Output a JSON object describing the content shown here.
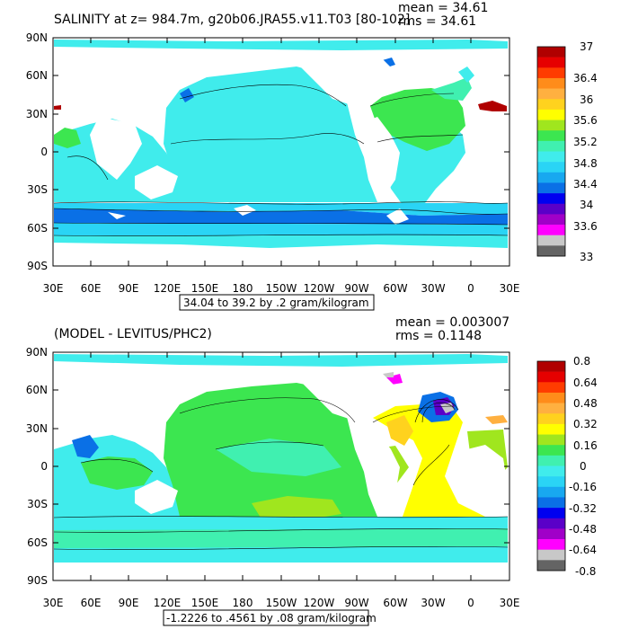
{
  "panels": [
    {
      "title": "SALINITY at z= 984.7m, g20b06.JRA55.v11.T03 [80-102]",
      "mean_label": "mean = 34.61",
      "rms_label": "rms = 34.61",
      "range_label": "34.04 to 39.2 by .2 gram/kilogram"
    },
    {
      "title": "(MODEL - LEVITUS/PHC2)",
      "mean_label": "mean = 0.003007",
      "rms_label": "rms = 0.1148",
      "range_label": "-1.2226 to .4561 by .08 gram/kilogram"
    }
  ],
  "chart_data": [
    {
      "type": "heatmap",
      "title": "SALINITY at z= 984.7m, g20b06.JRA55.v11.T03 [80-102]",
      "variable": "SALINITY",
      "depth": "984.7m",
      "case": "g20b06.JRA55.v11.T03",
      "years": "80-102",
      "units": "gram/kilogram",
      "mean": 34.61,
      "rms": 34.61,
      "min": 34.04,
      "max": 39.2,
      "contour_interval": 0.2,
      "xlim": [
        30,
        390
      ],
      "ylim": [
        -90,
        90
      ],
      "x_ticks": [
        "30E",
        "60E",
        "90E",
        "120E",
        "150E",
        "180",
        "150W",
        "120W",
        "90W",
        "60W",
        "30W",
        "0",
        "30E"
      ],
      "y_ticks": [
        "90N",
        "60N",
        "30N",
        "0",
        "30S",
        "60S",
        "90S"
      ],
      "colorbar_labels": [
        "37",
        "36.4",
        "36",
        "35.6",
        "35.2",
        "34.8",
        "34.4",
        "34",
        "33.6",
        "33"
      ],
      "colorbar_colors": [
        "#b00000",
        "#e60000",
        "#ff3c00",
        "#ff8c1a",
        "#ffb040",
        "#ffd21e",
        "#ffff00",
        "#a0e61e",
        "#3ce650",
        "#40f0b0",
        "#40ecec",
        "#2ad4f5",
        "#18a8f0",
        "#0a70e6",
        "#0000f0",
        "#5a00c8",
        "#a000c8",
        "#ff00ff",
        "#c8c8c8",
        "#646464"
      ]
    },
    {
      "type": "heatmap",
      "title": "(MODEL - LEVITUS/PHC2)",
      "units": "gram/kilogram",
      "mean": 0.003007,
      "rms": 0.1148,
      "min": -1.2226,
      "max": 0.4561,
      "contour_interval": 0.08,
      "xlim": [
        30,
        390
      ],
      "ylim": [
        -90,
        90
      ],
      "x_ticks": [
        "30E",
        "60E",
        "90E",
        "120E",
        "150E",
        "180",
        "150W",
        "120W",
        "90W",
        "60W",
        "30W",
        "0",
        "30E"
      ],
      "y_ticks": [
        "90N",
        "60N",
        "30N",
        "0",
        "30S",
        "60S",
        "90S"
      ],
      "colorbar_labels": [
        "0.8",
        "0.64",
        "0.48",
        "0.32",
        "0.16",
        "0",
        "-0.16",
        "-0.32",
        "-0.48",
        "-0.64",
        "-0.8"
      ],
      "colorbar_colors": [
        "#b00000",
        "#e60000",
        "#ff3c00",
        "#ff8c1a",
        "#ffb040",
        "#ffd21e",
        "#ffff00",
        "#a0e61e",
        "#3ce650",
        "#40f0b0",
        "#40ecec",
        "#2ad4f5",
        "#18a8f0",
        "#0a70e6",
        "#0000f0",
        "#5a00c8",
        "#a000c8",
        "#ff00ff",
        "#c8c8c8",
        "#646464"
      ]
    }
  ]
}
